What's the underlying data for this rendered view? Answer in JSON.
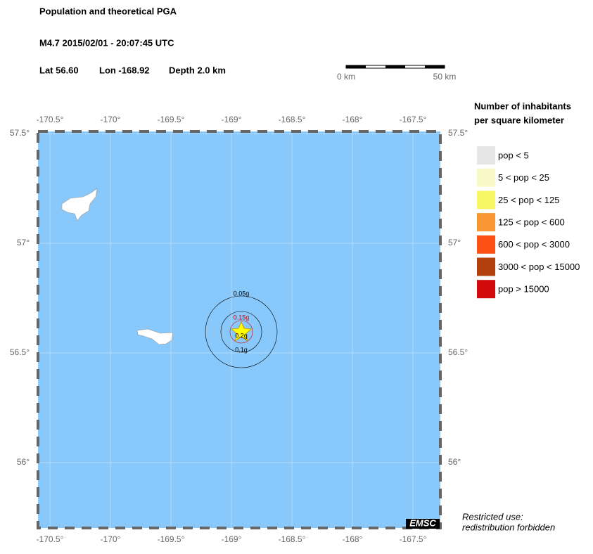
{
  "header": {
    "title": "Population and theoretical PGA",
    "event": "M4.7  2015/02/01 - 20:07:45 UTC",
    "lat": "Lat 56.60",
    "lon": "Lon -168.92",
    "depth": "Depth  2.0 km"
  },
  "scale_bar": {
    "start": "0 km",
    "end": "50 km"
  },
  "map": {
    "lon_labels": [
      "-170.5°",
      "-170°",
      "-169.5°",
      "-169°",
      "-168.5°",
      "-168°",
      "-167.5°"
    ],
    "lat_labels": [
      "57.5°",
      "57°",
      "56.5°",
      "56°"
    ],
    "contours": [
      "0.05g",
      "0.15g",
      "0.2g",
      "0.1g"
    ],
    "logo": "EMSC"
  },
  "legend": {
    "title_lines": [
      "Number of inhabitants",
      "per square kilometer"
    ],
    "items": [
      {
        "label": "pop < 5",
        "color": "#e6e6e6"
      },
      {
        "label": "5 < pop < 25",
        "color": "#fafac8"
      },
      {
        "label": "25 < pop < 125",
        "color": "#f8f864"
      },
      {
        "label": "125 < pop < 600",
        "color": "#f89632"
      },
      {
        "label": "600 < pop < 3000",
        "color": "#fa5014"
      },
      {
        "label": "3000 < pop < 15000",
        "color": "#b4400f"
      },
      {
        "label": "pop > 15000",
        "color": "#d20a0a"
      }
    ]
  },
  "notice": [
    "Restricted use:",
    "redistribution forbidden"
  ]
}
